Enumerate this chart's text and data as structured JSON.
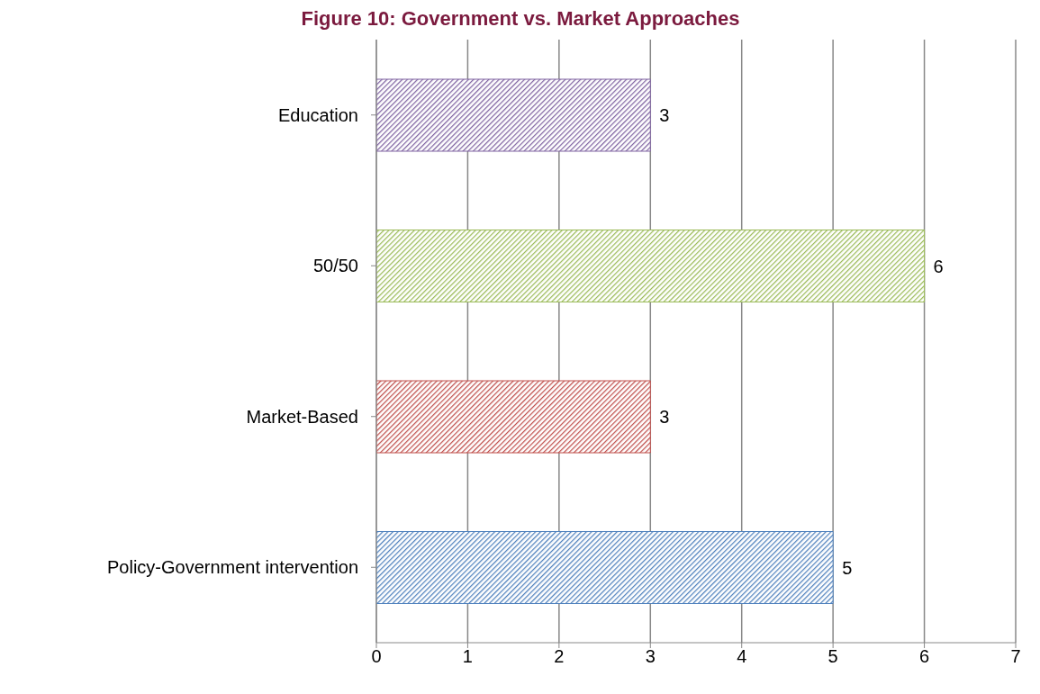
{
  "chart_data": {
    "type": "bar",
    "orientation": "horizontal",
    "title": "Figure 10: Government vs. Market Approaches",
    "categories": [
      "Education",
      "50/50",
      "Market-Based",
      "Policy-Government intervention"
    ],
    "values": [
      3,
      6,
      3,
      5
    ],
    "colors": [
      "#8064a2",
      "#9bbb59",
      "#c0504d",
      "#4f81bd"
    ],
    "xlim": [
      0,
      7
    ],
    "xticks": [
      0,
      1,
      2,
      3,
      4,
      5,
      6,
      7
    ],
    "grid": "x",
    "data_labels": true
  }
}
